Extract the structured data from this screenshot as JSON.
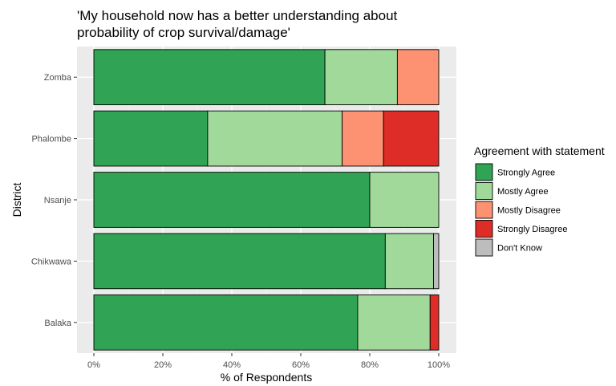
{
  "chart_data": {
    "type": "bar",
    "orientation": "horizontal",
    "stacked": true,
    "title_lines": [
      "'My household now has a better understanding about",
      "probability of crop survival/damage'"
    ],
    "xlabel": "% of Respondents",
    "ylabel": "District",
    "xlim": [
      0,
      100
    ],
    "x_ticks": [
      "0%",
      "20%",
      "40%",
      "60%",
      "80%",
      "100%"
    ],
    "grid": true,
    "categories": [
      "Zomba",
      "Phalombe",
      "Nsanje",
      "Chikwawa",
      "Balaka"
    ],
    "series": [
      {
        "name": "Strongly Agree",
        "color": "#31a354",
        "values": [
          67,
          33,
          80,
          84.5,
          76.5
        ]
      },
      {
        "name": "Mostly Agree",
        "color": "#a1d99b",
        "values": [
          21,
          39,
          20,
          14,
          21
        ]
      },
      {
        "name": "Mostly Disagree",
        "color": "#fc9272",
        "values": [
          12,
          12,
          0,
          0,
          0
        ]
      },
      {
        "name": "Strongly Disagree",
        "color": "#de2d26",
        "values": [
          0,
          16,
          0,
          0,
          2.5
        ]
      },
      {
        "name": "Don't Know",
        "color": "#bdbdbd",
        "values": [
          0,
          0,
          0,
          1.5,
          0
        ]
      }
    ],
    "legend": {
      "title": "Agreement with statement",
      "position": "right"
    }
  }
}
